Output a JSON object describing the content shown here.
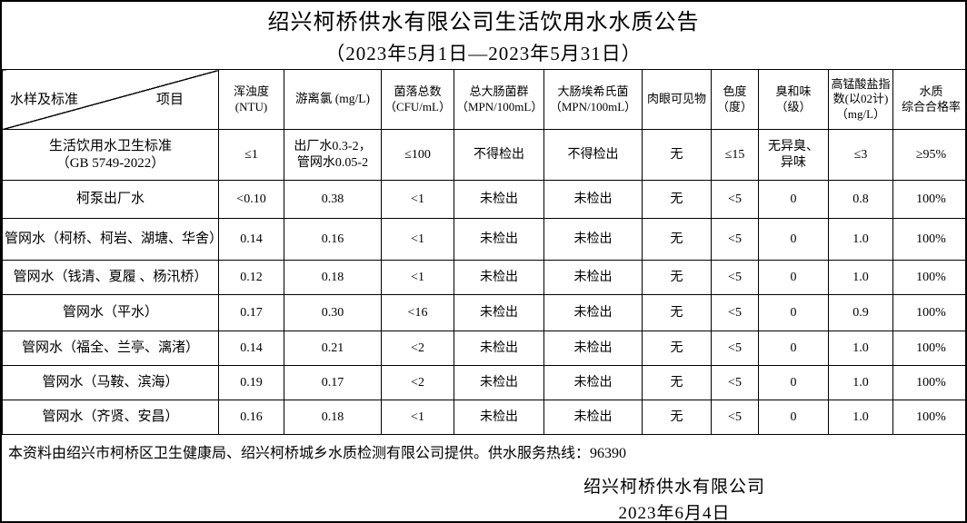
{
  "title": "绍兴柯桥供水有限公司生活饮用水水质公告",
  "subtitle": "（2023年5月1日—2023年5月31日）",
  "table": {
    "corner": {
      "item_label": "项目",
      "sample_label": "水样及标准"
    },
    "headers": [
      "浑浊度\n(NTU)",
      "游离氯 (mg/L)",
      "菌落总数\n（CFU/mL）",
      "总大肠菌群\n（MPN/100mL）",
      "大肠埃希氏菌\n（MPN/100mL）",
      "肉眼可见物",
      "色度\n（度）",
      "臭和味\n（级）",
      "高锰酸盐指\n数(以02计)\n（mg/L）",
      "水质\n综合合格率"
    ],
    "rows": [
      {
        "label": "生活饮用水卫生标准\n（GB 5749-2022）",
        "values": [
          "≤1",
          "出厂水0.3-2，\n管网水0.05-2",
          "≤100",
          "不得检出",
          "不得检出",
          "无",
          "≤15",
          "无异臭、\n异味",
          "≤3",
          "≥95%"
        ]
      },
      {
        "label": "柯泵出厂水",
        "values": [
          "<0.10",
          "0.38",
          "<1",
          "未检出",
          "未检出",
          "无",
          "<5",
          "0",
          "0.8",
          "100%"
        ]
      },
      {
        "label": "管网水（柯桥、柯岩、湖塘、华舍）",
        "values": [
          "0.14",
          "0.16",
          "<1",
          "未检出",
          "未检出",
          "无",
          "<5",
          "0",
          "1.0",
          "100%"
        ]
      },
      {
        "label": "管网水（钱清、夏履 、杨汛桥）",
        "values": [
          "0.12",
          "0.18",
          "<1",
          "未检出",
          "未检出",
          "无",
          "<5",
          "0",
          "1.0",
          "100%"
        ]
      },
      {
        "label": "管网水（平水）",
        "values": [
          "0.17",
          "0.30",
          "<16",
          "未检出",
          "未检出",
          "无",
          "<5",
          "0",
          "0.9",
          "100%"
        ]
      },
      {
        "label": "管网水（福全、兰亭、漓渚）",
        "values": [
          "0.14",
          "0.21",
          "<2",
          "未检出",
          "未检出",
          "无",
          "<5",
          "0",
          "1.0",
          "100%"
        ]
      },
      {
        "label": "管网水（马鞍、滨海）",
        "values": [
          "0.19",
          "0.17",
          "<2",
          "未检出",
          "未检出",
          "无",
          "<5",
          "0",
          "1.0",
          "100%"
        ]
      },
      {
        "label": "管网水（齐贤、安昌）",
        "values": [
          "0.16",
          "0.18",
          "<1",
          "未检出",
          "未检出",
          "无",
          "<5",
          "0",
          "1.0",
          "100%"
        ]
      }
    ]
  },
  "footer": {
    "note": "本资料由绍兴市柯桥区卫生健康局、绍兴柯桥城乡水质检测有限公司提供。供水服务热线：96390",
    "company": "绍兴柯桥供水有限公司",
    "date": "2023年6月4日"
  },
  "colors": {
    "border": "#000000",
    "background": "#ffffff",
    "text": "#000000"
  }
}
